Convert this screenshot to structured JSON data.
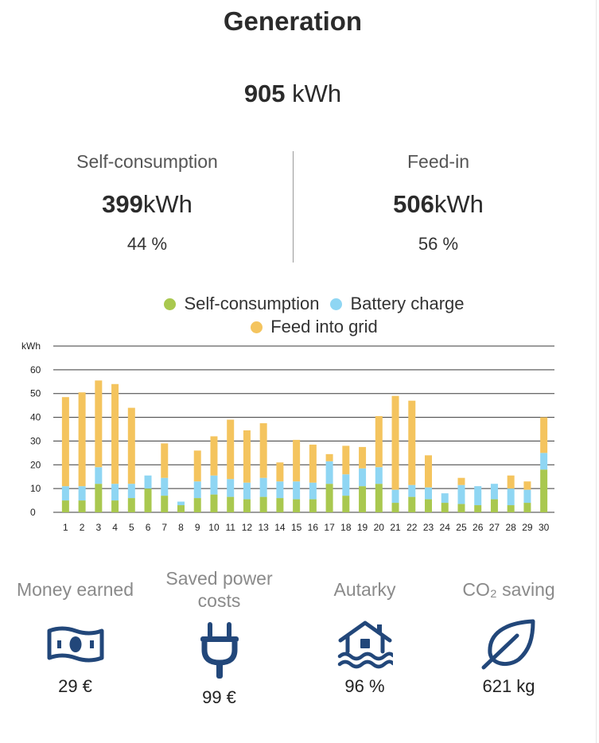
{
  "header": {
    "title": "Generation"
  },
  "total": {
    "value": "905",
    "unit": "kWh"
  },
  "self_consumption": {
    "label": "Self-consumption",
    "value": "399",
    "unit": "kWh",
    "percent": "44 %"
  },
  "feed_in": {
    "label": "Feed-in",
    "value": "506",
    "unit": "kWh",
    "percent": "56 %"
  },
  "legend": [
    {
      "label": "Self-consumption",
      "color": "#a9c84f"
    },
    {
      "label": "Battery charge",
      "color": "#8fd6f3"
    },
    {
      "label": "Feed into grid",
      "color": "#f4c45e"
    }
  ],
  "chart_data": {
    "type": "bar",
    "stacked": true,
    "ylabel": "kWh",
    "ylim": [
      0,
      70
    ],
    "yticks": [
      0,
      10,
      20,
      30,
      40,
      50,
      60
    ],
    "grid": true,
    "categories": [
      "1",
      "2",
      "3",
      "4",
      "5",
      "6",
      "7",
      "8",
      "9",
      "10",
      "11",
      "12",
      "13",
      "14",
      "15",
      "16",
      "17",
      "18",
      "19",
      "20",
      "21",
      "22",
      "23",
      "24",
      "25",
      "26",
      "27",
      "28",
      "29",
      "30"
    ],
    "series": [
      {
        "name": "Self-consumption",
        "color": "#a9c84f",
        "values": [
          5,
          5,
          12,
          5,
          6,
          10,
          7,
          3,
          6,
          7.5,
          6.5,
          5.5,
          6.5,
          6,
          5.5,
          5.5,
          12,
          7,
          11,
          12,
          4,
          6.5,
          5.5,
          4,
          3.5,
          3,
          5.5,
          3,
          4,
          18
        ]
      },
      {
        "name": "Battery charge",
        "color": "#8fd6f3",
        "values": [
          6,
          6,
          7,
          7,
          6,
          5.5,
          7.5,
          1.5,
          7,
          8,
          7.5,
          7,
          8,
          7,
          7.5,
          7,
          9.5,
          9,
          7.5,
          7,
          5.5,
          5,
          5,
          4,
          8,
          8,
          6.5,
          7,
          5.5,
          7
        ]
      },
      {
        "name": "Feed into grid",
        "color": "#f4c45e",
        "values": [
          37.5,
          39.5,
          36.5,
          42,
          32,
          0,
          14.5,
          0,
          13,
          16.5,
          25,
          22,
          23,
          8,
          17.5,
          16,
          3,
          12,
          9,
          21.5,
          39.5,
          35.5,
          13.5,
          0,
          3,
          0,
          0,
          5.5,
          3.5,
          15
        ]
      }
    ]
  },
  "tiles": [
    {
      "label": "Money earned",
      "icon": "banknote-icon",
      "value": "29 €"
    },
    {
      "label": "Saved power costs",
      "icon": "plug-icon",
      "value": "99 €"
    },
    {
      "label": "Autarky",
      "icon": "house-water-icon",
      "value": "96 %"
    },
    {
      "label": "CO₂ saving",
      "icon": "leaf-icon",
      "value": "621 kg"
    }
  ],
  "colors": {
    "icon": "#22477a",
    "text_muted": "#8a8a8a"
  }
}
